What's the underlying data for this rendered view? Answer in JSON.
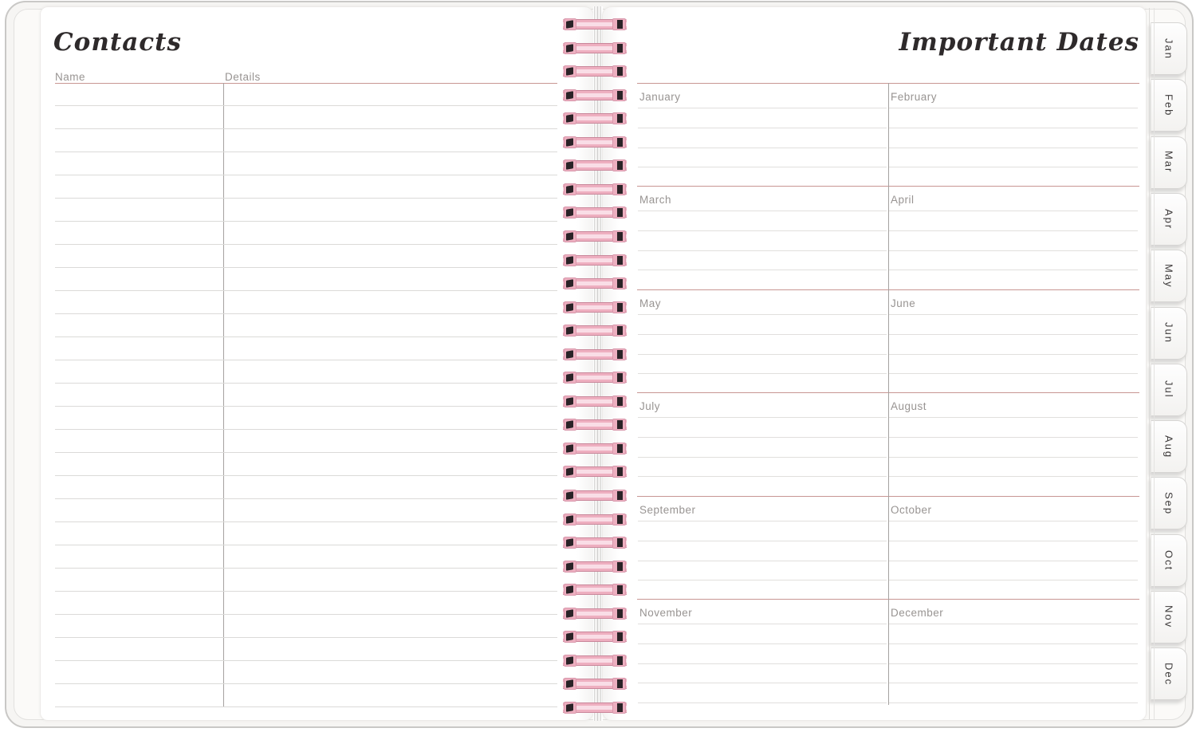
{
  "colors": {
    "accent_pink": "#c89693",
    "rule_gray": "#dbdad8",
    "divider_gray": "#a5a2a0",
    "coil_pink": "#eeafc0",
    "coil_dark": "#2a2327",
    "label_gray": "#989492",
    "title_ink": "#2e2a2b"
  },
  "left_page": {
    "title": "Contacts",
    "name_header": "Name",
    "details_header": "Details"
  },
  "right_page": {
    "title": "Important Dates",
    "months": [
      "January",
      "February",
      "March",
      "April",
      "May",
      "June",
      "July",
      "August",
      "September",
      "October",
      "November",
      "December"
    ]
  },
  "tabs": [
    "Jan",
    "Feb",
    "Mar",
    "Apr",
    "May",
    "Jun",
    "Jul",
    "Aug",
    "Sep",
    "Oct",
    "Nov",
    "Dec"
  ]
}
